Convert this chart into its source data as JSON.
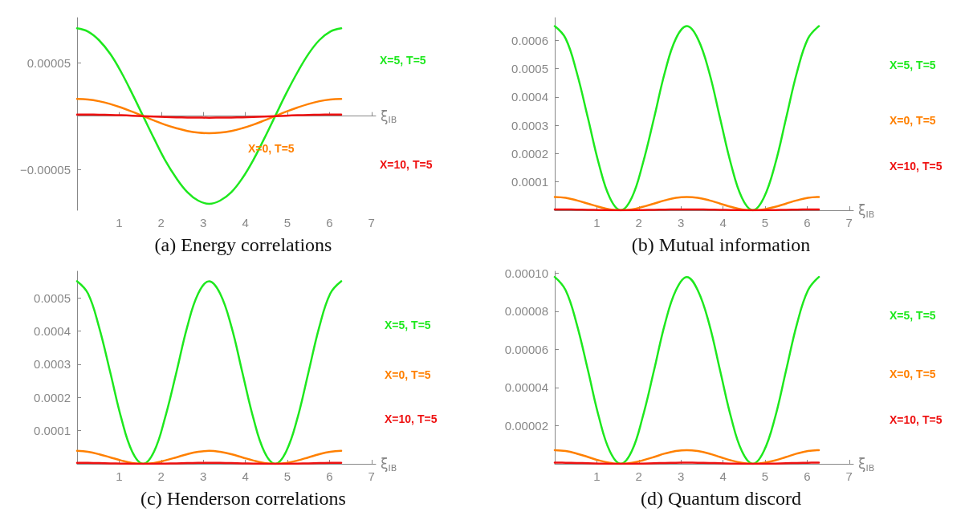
{
  "chart_data": [
    {
      "type": "line",
      "title": "(a) Energy correlations",
      "xlabel": "ξ$_{IB}$",
      "x": [
        0,
        0.26,
        0.52,
        0.79,
        1.05,
        1.31,
        1.57,
        1.83,
        2.09,
        2.36,
        2.62,
        2.88,
        3.14,
        3.4,
        3.67,
        3.93,
        4.19,
        4.45,
        4.71,
        4.97,
        5.24,
        5.5,
        5.76,
        6.02,
        6.28
      ],
      "xlim": [
        0,
        7.1
      ],
      "xticks": [
        1,
        2,
        3,
        4,
        5,
        6,
        7
      ],
      "ylim": [
        -8.8e-05,
        9.2e-05
      ],
      "yticks": [
        {
          "value": -5e-05,
          "label": "−0.00005"
        },
        {
          "value": 5e-05,
          "label": "0.00005"
        }
      ],
      "series": [
        {
          "name": "X=5, T=5",
          "color": "#1ee81e",
          "values": [
            8.2e-05,
            7.9e-05,
            7.1e-05,
            5.8e-05,
            4.1e-05,
            2.1e-05,
            0,
            -2.1e-05,
            -4.1e-05,
            -5.8e-05,
            -7.1e-05,
            -7.9e-05,
            -8.2e-05,
            -7.9e-05,
            -7.1e-05,
            -5.8e-05,
            -4.1e-05,
            -2.1e-05,
            0,
            2.1e-05,
            4.1e-05,
            5.8e-05,
            7.1e-05,
            7.9e-05,
            8.2e-05
          ]
        },
        {
          "name": "X=0, T=5",
          "color": "#ff8000",
          "values": [
            1.6e-05,
            1.55e-05,
            1.39e-05,
            1.13e-05,
            8e-06,
            4.1e-06,
            0,
            -4.1e-06,
            -8e-06,
            -1.13e-05,
            -1.39e-05,
            -1.55e-05,
            -1.6e-05,
            -1.55e-05,
            -1.39e-05,
            -1.13e-05,
            -8e-06,
            -4.1e-06,
            0,
            4.1e-06,
            8e-06,
            1.13e-05,
            1.39e-05,
            1.55e-05,
            1.6e-05
          ]
        },
        {
          "name": "X=10, T=5",
          "color": "#ee1111",
          "values": [
            1.5e-06,
            1.4e-06,
            1.3e-06,
            1.1e-06,
            8e-07,
            4e-07,
            0,
            -4e-07,
            -8e-07,
            -1.1e-06,
            -1.3e-06,
            -1.4e-06,
            -1.5e-06,
            -1.4e-06,
            -1.3e-06,
            -1.1e-06,
            -8e-07,
            -4e-07,
            0,
            4e-07,
            8e-07,
            1.1e-06,
            1.3e-06,
            1.4e-06,
            1.5e-06
          ]
        }
      ]
    },
    {
      "type": "line",
      "title": "(b) Mutual information",
      "xlabel": "ξ$_{IB}$",
      "x": [
        0,
        0.26,
        0.52,
        0.79,
        1.05,
        1.31,
        1.57,
        1.83,
        2.09,
        2.36,
        2.62,
        2.88,
        3.14,
        3.4,
        3.67,
        3.93,
        4.19,
        4.45,
        4.71,
        4.97,
        5.24,
        5.5,
        5.76,
        6.02,
        6.28
      ],
      "xlim": [
        0,
        7.1
      ],
      "xticks": [
        1,
        2,
        3,
        4,
        5,
        6,
        7
      ],
      "ylim": [
        0,
        0.00068
      ],
      "yticks": [
        0.0001,
        0.0002,
        0.0003,
        0.0004,
        0.0005,
        0.0006
      ],
      "series": [
        {
          "name": "X=5, T=5",
          "color": "#1ee81e",
          "values": [
            0.00065,
            0.000606,
            0.000488,
            0.000325,
            0.000163,
            4.4e-05,
            0,
            4.4e-05,
            0.000163,
            0.000325,
            0.000488,
            0.000606,
            0.00065,
            0.000606,
            0.000488,
            0.000325,
            0.000163,
            4.4e-05,
            0,
            4.4e-05,
            0.000163,
            0.000325,
            0.000488,
            0.000606,
            0.00065
          ]
        },
        {
          "name": "X=0, T=5",
          "color": "#ff8000",
          "values": [
            4.7e-05,
            4.4e-05,
            3.5e-05,
            2.35e-05,
            1.2e-05,
            3e-06,
            0,
            3e-06,
            1.2e-05,
            2.35e-05,
            3.5e-05,
            4.4e-05,
            4.7e-05,
            4.4e-05,
            3.5e-05,
            2.35e-05,
            1.2e-05,
            3e-06,
            0,
            3e-06,
            1.2e-05,
            2.35e-05,
            3.5e-05,
            4.4e-05,
            4.7e-05
          ]
        },
        {
          "name": "X=10, T=5",
          "color": "#ee1111",
          "values": [
            3e-06,
            2.8e-06,
            2.3e-06,
            1.5e-06,
            8e-07,
            2e-07,
            0,
            2e-07,
            8e-07,
            1.5e-06,
            2.3e-06,
            2.8e-06,
            3e-06,
            2.8e-06,
            2.3e-06,
            1.5e-06,
            8e-07,
            2e-07,
            0,
            2e-07,
            8e-07,
            1.5e-06,
            2.3e-06,
            2.8e-06,
            3e-06
          ]
        }
      ]
    },
    {
      "type": "line",
      "title": "(c) Henderson correlations",
      "xlabel": "ξ$_{IB}$",
      "x": [
        0,
        0.26,
        0.52,
        0.79,
        1.05,
        1.31,
        1.57,
        1.83,
        2.09,
        2.36,
        2.62,
        2.88,
        3.14,
        3.4,
        3.67,
        3.93,
        4.19,
        4.45,
        4.71,
        4.97,
        5.24,
        5.5,
        5.76,
        6.02,
        6.28
      ],
      "xlim": [
        0,
        7.1
      ],
      "xticks": [
        1,
        2,
        3,
        4,
        5,
        6,
        7
      ],
      "ylim": [
        0,
        0.00058
      ],
      "yticks": [
        0.0001,
        0.0002,
        0.0003,
        0.0004,
        0.0005
      ],
      "series": [
        {
          "name": "X=5, T=5",
          "color": "#1ee81e",
          "values": [
            0.00055,
            0.000513,
            0.000413,
            0.000275,
            0.000138,
            3.7e-05,
            0,
            3.7e-05,
            0.000138,
            0.000275,
            0.000413,
            0.000513,
            0.00055,
            0.000513,
            0.000413,
            0.000275,
            0.000138,
            3.7e-05,
            0,
            3.7e-05,
            0.000138,
            0.000275,
            0.000413,
            0.000513,
            0.00055
          ]
        },
        {
          "name": "X=0, T=5",
          "color": "#ff8000",
          "values": [
            3.9e-05,
            3.6e-05,
            2.9e-05,
            1.95e-05,
            1e-05,
            2.6e-06,
            0,
            2.6e-06,
            1e-05,
            1.95e-05,
            2.9e-05,
            3.6e-05,
            3.9e-05,
            3.6e-05,
            2.9e-05,
            1.95e-05,
            1e-05,
            2.6e-06,
            0,
            2.6e-06,
            1e-05,
            1.95e-05,
            2.9e-05,
            3.6e-05,
            3.9e-05
          ]
        },
        {
          "name": "X=10, T=5",
          "color": "#ee1111",
          "values": [
            3e-06,
            2.8e-06,
            2.3e-06,
            1.5e-06,
            8e-07,
            2e-07,
            0,
            2e-07,
            8e-07,
            1.5e-06,
            2.3e-06,
            2.8e-06,
            3e-06,
            2.8e-06,
            2.3e-06,
            1.5e-06,
            8e-07,
            2e-07,
            0,
            2e-07,
            8e-07,
            1.5e-06,
            2.3e-06,
            2.8e-06,
            3e-06
          ]
        }
      ]
    },
    {
      "type": "line",
      "title": "(d) Quantum discord",
      "xlabel": "ξ$_{IB}$",
      "x": [
        0,
        0.26,
        0.52,
        0.79,
        1.05,
        1.31,
        1.57,
        1.83,
        2.09,
        2.36,
        2.62,
        2.88,
        3.14,
        3.4,
        3.67,
        3.93,
        4.19,
        4.45,
        4.71,
        4.97,
        5.24,
        5.5,
        5.76,
        6.02,
        6.28
      ],
      "xlim": [
        0,
        7.1
      ],
      "xticks": [
        1,
        2,
        3,
        4,
        5,
        6,
        7
      ],
      "ylim": [
        0,
        0.000101
      ],
      "yticks": [
        {
          "value": 2e-05,
          "label": "0.00002"
        },
        {
          "value": 4e-05,
          "label": "0.00004"
        },
        {
          "value": 6e-05,
          "label": "0.00006"
        },
        {
          "value": 8e-05,
          "label": "0.00008"
        },
        {
          "value": 0.0001,
          "label": "0.00010"
        }
      ],
      "series": [
        {
          "name": "X=5, T=5",
          "color": "#1ee81e",
          "values": [
            9.8e-05,
            9.1e-05,
            7.35e-05,
            4.9e-05,
            2.45e-05,
            6.6e-06,
            0,
            6.6e-06,
            2.45e-05,
            4.9e-05,
            7.35e-05,
            9.1e-05,
            9.8e-05,
            9.1e-05,
            7.35e-05,
            4.9e-05,
            2.45e-05,
            6.6e-06,
            0,
            6.6e-06,
            2.45e-05,
            4.9e-05,
            7.35e-05,
            9.1e-05,
            9.8e-05
          ]
        },
        {
          "name": "X=0, T=5",
          "color": "#ff8000",
          "values": [
            7.2e-06,
            6.7e-06,
            5.4e-06,
            3.6e-06,
            1.8e-06,
            5e-07,
            0,
            5e-07,
            1.8e-06,
            3.6e-06,
            5.4e-06,
            6.7e-06,
            7.2e-06,
            6.7e-06,
            5.4e-06,
            3.6e-06,
            1.8e-06,
            5e-07,
            0,
            5e-07,
            1.8e-06,
            3.6e-06,
            5.4e-06,
            6.7e-06,
            7.2e-06
          ]
        },
        {
          "name": "X=10, T=5",
          "color": "#ee1111",
          "values": [
            6e-07,
            5.6e-07,
            4.5e-07,
            3e-07,
            1.5e-07,
            4e-08,
            0,
            4e-08,
            1.5e-07,
            3e-07,
            4.5e-07,
            5.6e-07,
            6e-07,
            5.6e-07,
            4.5e-07,
            3e-07,
            1.5e-07,
            4e-08,
            0,
            4e-08,
            1.5e-07,
            3e-07,
            4.5e-07,
            5.6e-07,
            6e-07
          ]
        }
      ]
    }
  ]
}
